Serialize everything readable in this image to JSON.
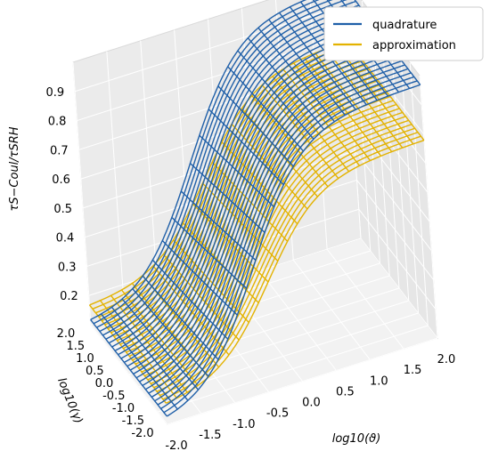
{
  "chart_data": {
    "type": "surface3d",
    "x_axis": {
      "label": "log10(ϑ)",
      "ticks": [
        "-2.0",
        "-1.5",
        "-1.0",
        "-0.5",
        "0.0",
        "0.5",
        "1.0",
        "1.5",
        "2.0"
      ],
      "range": [
        -2.0,
        2.0
      ]
    },
    "y_axis": {
      "label": "log10(γ)",
      "ticks": [
        "-2.0",
        "-1.5",
        "-1.0",
        "-0.5",
        "0.0",
        "0.5",
        "1.0",
        "1.5",
        "2.0"
      ],
      "range": [
        -2.0,
        2.0
      ]
    },
    "z_axis": {
      "label": "τS−Coul/τSRH",
      "ticks": [
        "0.2",
        "0.3",
        "0.4",
        "0.5",
        "0.6",
        "0.7",
        "0.8",
        "0.9"
      ],
      "range": [
        0.1,
        1.0
      ]
    },
    "grid": true,
    "legend_position": "top-right",
    "series": [
      {
        "name": "quadrature",
        "color": "#1f5fa8",
        "z_min": 0.1,
        "z_max": 0.97,
        "x_center": -0.5,
        "x_width": 0.9,
        "y_tilt": 0.05
      },
      {
        "name": "approximation",
        "color": "#e3b200",
        "z_min": 0.16,
        "z_max": 0.78,
        "x_center": -0.3,
        "x_width": 0.9,
        "y_tilt": 0.05
      }
    ]
  }
}
